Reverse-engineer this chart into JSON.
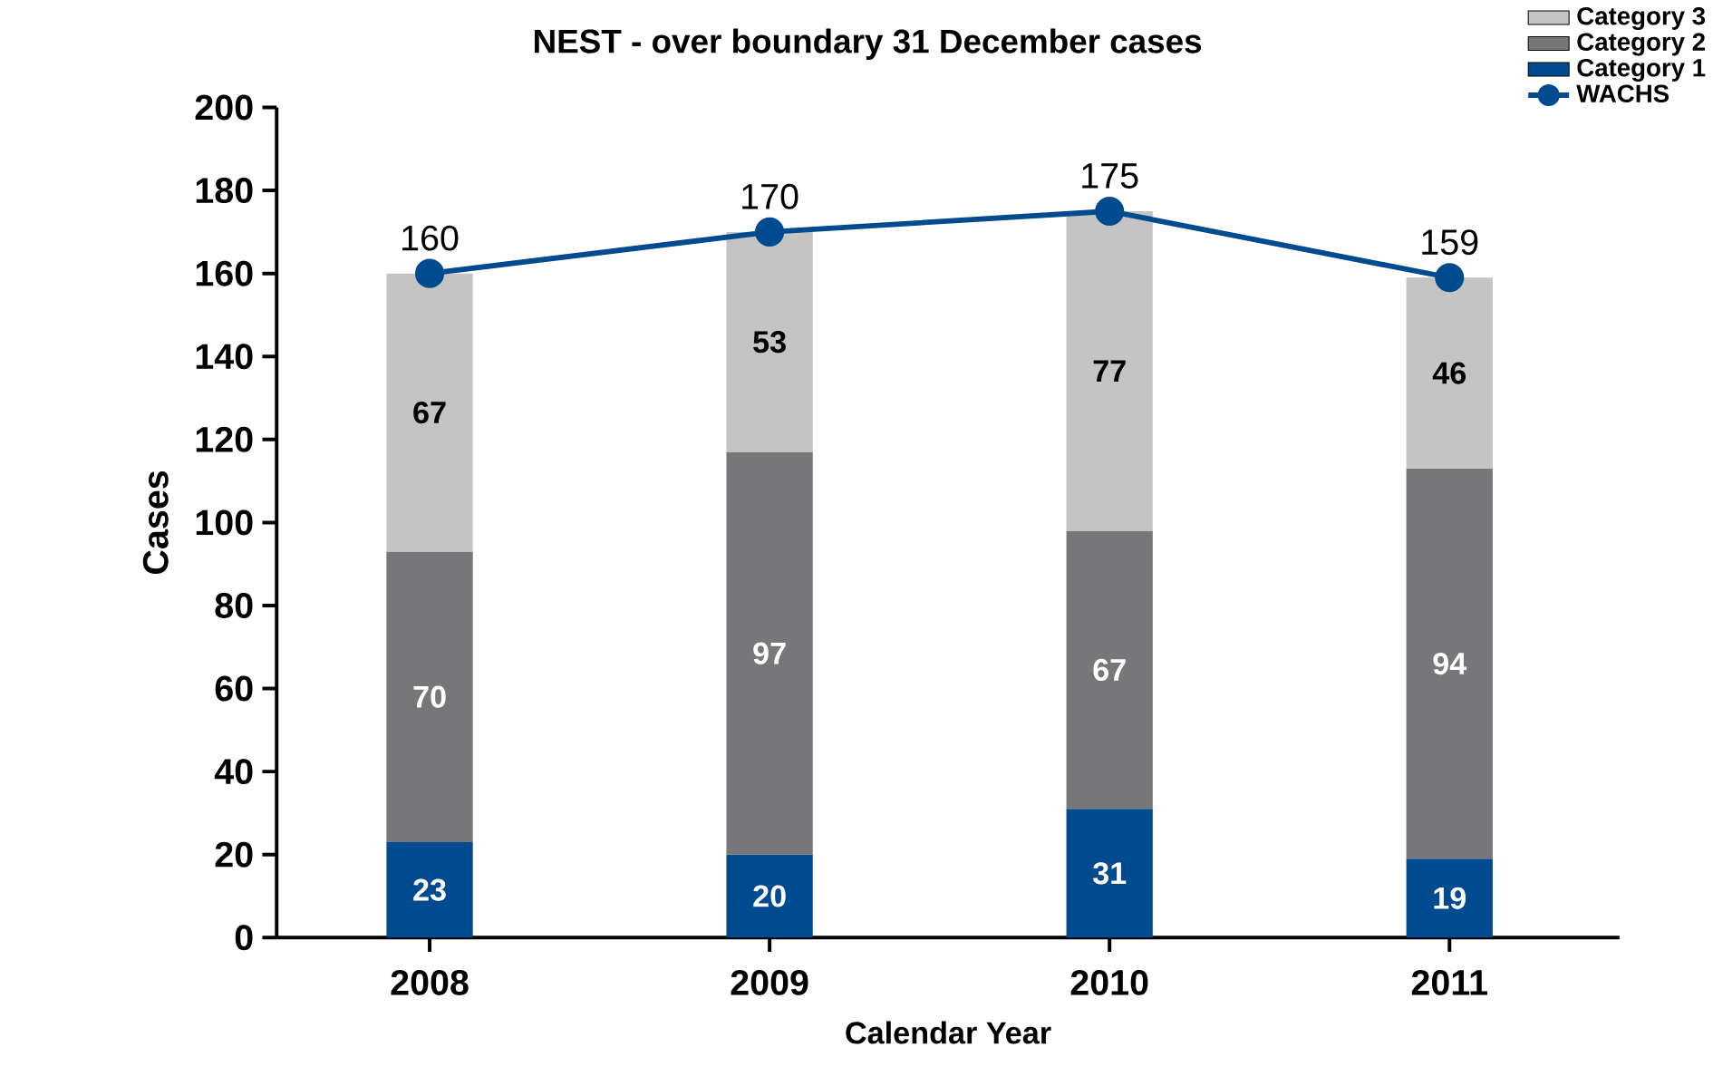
{
  "chart_data": {
    "type": "bar",
    "stacked": true,
    "title": "NEST - over boundary 31 December cases",
    "xlabel": "Calendar Year",
    "ylabel": "Cases",
    "categories": [
      "2008",
      "2009",
      "2010",
      "2011"
    ],
    "series": [
      {
        "name": "Category 1",
        "color": "#004a8f",
        "values": [
          23,
          20,
          31,
          19
        ]
      },
      {
        "name": "Category 2",
        "color": "#77777a",
        "values": [
          70,
          97,
          67,
          94
        ]
      },
      {
        "name": "Category 3",
        "color": "#c4c4c4",
        "values": [
          67,
          53,
          77,
          46
        ]
      },
      {
        "name": "WACHS",
        "type": "line",
        "color": "#004a8f",
        "marker": "circle",
        "values": [
          160,
          170,
          175,
          159
        ]
      }
    ],
    "ylim": [
      0,
      200
    ],
    "yticks": [
      0,
      20,
      40,
      60,
      80,
      100,
      120,
      140,
      160,
      180,
      200
    ],
    "data_labels": true,
    "legend": "top right"
  }
}
